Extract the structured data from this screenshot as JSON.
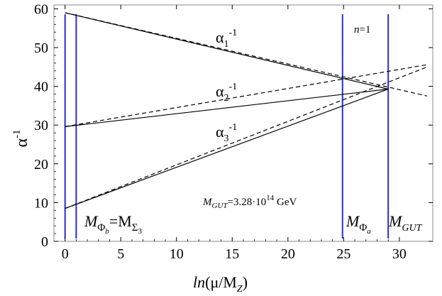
{
  "chart_data": {
    "type": "line",
    "xlabel": "ln(μ/M_Z)",
    "ylabel": "α^-1",
    "xlim": [
      -1,
      33
    ],
    "ylim": [
      0,
      61
    ],
    "grid": false,
    "x_ticks": [
      0,
      5,
      10,
      15,
      20,
      25,
      30
    ],
    "y_ticks": [
      0,
      10,
      20,
      30,
      40,
      50,
      60
    ],
    "series": [
      {
        "name": "α1^-1 (solid)",
        "style": "solid",
        "x": [
          0,
          29
        ],
        "y": [
          59.0,
          39.3
        ]
      },
      {
        "name": "α2^-1 (solid)",
        "style": "solid",
        "x": [
          0,
          29
        ],
        "y": [
          29.6,
          39.3
        ]
      },
      {
        "name": "α3^-1 (solid)",
        "style": "solid",
        "x": [
          0,
          29
        ],
        "y": [
          8.5,
          39.3
        ]
      },
      {
        "name": "α1^-1 (dashed)",
        "style": "dashed",
        "x": [
          0,
          32.5
        ],
        "y": [
          59.0,
          37.5
        ]
      },
      {
        "name": "α2^-1 (dashed)",
        "style": "dashed",
        "x": [
          0,
          32.5
        ],
        "y": [
          29.6,
          45.6
        ]
      },
      {
        "name": "α3^-1 (dashed)",
        "style": "dashed",
        "x": [
          0,
          32.5
        ],
        "y": [
          8.5,
          45.0
        ]
      }
    ],
    "vertical_lines": [
      {
        "x": 0,
        "color": "#2b2bd6"
      },
      {
        "x": 1.0,
        "color": "#2b2bd6"
      },
      {
        "x": 24.9,
        "color": "#2b2bd6"
      },
      {
        "x": 29.0,
        "color": "#2b2bd6"
      }
    ],
    "annotations": {
      "alpha1": {
        "base": "α",
        "sub": "1",
        "sup": "-1"
      },
      "alpha2": {
        "base": "α",
        "sub": "2",
        "sup": "-1"
      },
      "alpha3": {
        "base": "α",
        "sub": "3",
        "sup": "-1"
      },
      "n_label": {
        "n": "n",
        "eq": "=1"
      },
      "mgut_value": {
        "m": "M",
        "sub": "GUT",
        "text": "=3.28·10",
        "exp": "14",
        "unit": " GeV"
      },
      "m_phi_b": {
        "m": "M",
        "sub_phi": "Φ",
        "sub_b": "b",
        "eq": "=M",
        "sub_sigma": "Σ",
        "sub_3": "3"
      },
      "m_phi_a": {
        "m": "M",
        "sub_phi": "Φ",
        "sub_a": "a"
      },
      "m_gut": {
        "m": "M",
        "sub": "GUT"
      }
    },
    "axis_titles": {
      "x": {
        "ln": "ln",
        "paren": "(μ/M",
        "sub": "Z",
        "close": ")"
      },
      "y": {
        "base": "α",
        "sup": "-1"
      }
    },
    "colors": {
      "vertical": "#2b2bd6",
      "line": "#000000"
    }
  }
}
